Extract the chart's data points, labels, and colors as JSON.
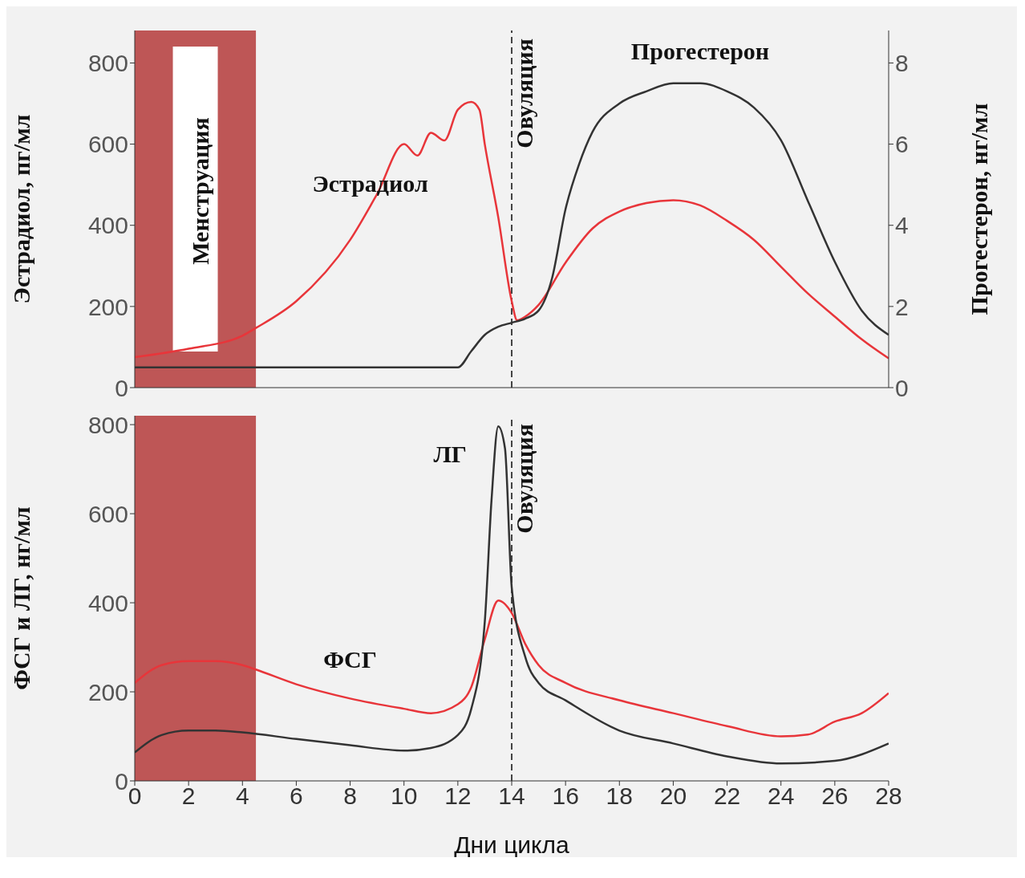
{
  "chart_data": [
    {
      "type": "line",
      "ylabel": "Эстрадиол, пг/мл",
      "y2label": "Прогестерон, нг/мл",
      "xlim": [
        0,
        28
      ],
      "xticks": [
        0,
        2,
        4,
        6,
        8,
        10,
        12,
        14,
        16,
        18,
        20,
        22,
        24,
        26,
        28
      ],
      "ylim": [
        0,
        880
      ],
      "yticks": [
        0,
        200,
        400,
        600,
        800
      ],
      "y2lim": [
        0,
        8.8
      ],
      "y2ticks": [
        0,
        2,
        4,
        6,
        8
      ],
      "tick_labels": "y",
      "grid": false,
      "legend": false,
      "marker": "none",
      "series": [
        {
          "name": "Эстрадиол",
          "color": "#e8353a",
          "x": [
            0,
            2,
            4,
            4.5,
            6,
            8,
            9,
            10,
            10.5,
            11,
            11.5,
            12,
            12.5,
            12.8,
            13,
            13.5,
            14,
            14.2,
            14.5,
            15,
            16,
            17,
            18,
            19,
            20,
            21,
            22,
            23,
            24,
            25,
            26,
            27,
            28
          ],
          "values": [
            75,
            96,
            128,
            147,
            213,
            364,
            477,
            600,
            572,
            628,
            609,
            685,
            704,
            685,
            600,
            420,
            213,
            166,
            175,
            204,
            308,
            392,
            434,
            455,
            462,
            449,
            411,
            364,
            298,
            232,
            175,
            119,
            72
          ]
        },
        {
          "name": "Прогестерон",
          "color": "#333333",
          "axis": "y2",
          "x": [
            0,
            12,
            12.5,
            13,
            13.5,
            14,
            14.5,
            15,
            15.5,
            16,
            16.5,
            17,
            18,
            19,
            20,
            21,
            22,
            23,
            24,
            25,
            26,
            27,
            28
          ],
          "values": [
            0.5,
            0.5,
            0.9,
            1.3,
            1.5,
            1.6,
            1.7,
            1.9,
            2.7,
            4.4,
            5.5,
            6.3,
            7.0,
            7.3,
            7.5,
            7.5,
            7.3,
            6.9,
            6.1,
            4.6,
            3.1,
            1.9,
            1.3
          ]
        }
      ],
      "bands": [
        {
          "axis": "x",
          "from": 0,
          "to": 4.5,
          "label": "Менструация",
          "color": "#b84545"
        }
      ],
      "ref_lines": [
        {
          "axis": "x",
          "value": 14,
          "label": "Овуляция",
          "line_style": "dashed",
          "color": "#444444"
        }
      ]
    },
    {
      "type": "line",
      "xlabel": "Дни цикла",
      "ylabel": "ФСГ и ЛГ, нг/мл",
      "xlim": [
        0,
        28
      ],
      "xticks": [
        0,
        2,
        4,
        6,
        8,
        10,
        12,
        14,
        16,
        18,
        20,
        22,
        24,
        26,
        28
      ],
      "ylim": [
        0,
        820
      ],
      "yticks": [
        0,
        200,
        400,
        600,
        800
      ],
      "grid": false,
      "legend": false,
      "marker": "none",
      "series": [
        {
          "name": "ФСГ",
          "color": "#e8353a",
          "x": [
            0,
            1,
            2,
            3,
            4,
            4.5,
            6,
            8,
            10,
            11,
            12,
            12.5,
            13,
            13.5,
            14,
            14.5,
            15,
            16,
            18,
            20,
            22,
            24,
            25,
            26,
            27,
            28
          ],
          "values": [
            220,
            260,
            269,
            269,
            260,
            250,
            217,
            185,
            162,
            152,
            172,
            211,
            318,
            405,
            377,
            308,
            260,
            220,
            181,
            152,
            123,
            100,
            104,
            133,
            152,
            197
          ]
        },
        {
          "name": "ЛГ",
          "color": "#333333",
          "x": [
            0,
            1,
            2,
            3,
            4,
            6,
            8,
            10,
            11,
            12,
            12.5,
            13,
            13.25,
            13.5,
            13.75,
            14,
            14.5,
            15,
            16,
            18,
            20,
            22,
            24,
            26,
            28
          ],
          "values": [
            64,
            103,
            113,
            113,
            109,
            94,
            80,
            68,
            74,
            103,
            162,
            357,
            630,
            796,
            747,
            435,
            279,
            220,
            181,
            113,
            84,
            55,
            39,
            45,
            84
          ]
        }
      ],
      "bands": [
        {
          "axis": "x",
          "from": 0,
          "to": 4.5,
          "color": "#b84545"
        }
      ],
      "ref_lines": [
        {
          "axis": "x",
          "value": 14,
          "label": "Овуляция",
          "line_style": "dashed",
          "color": "#444444"
        }
      ]
    }
  ]
}
